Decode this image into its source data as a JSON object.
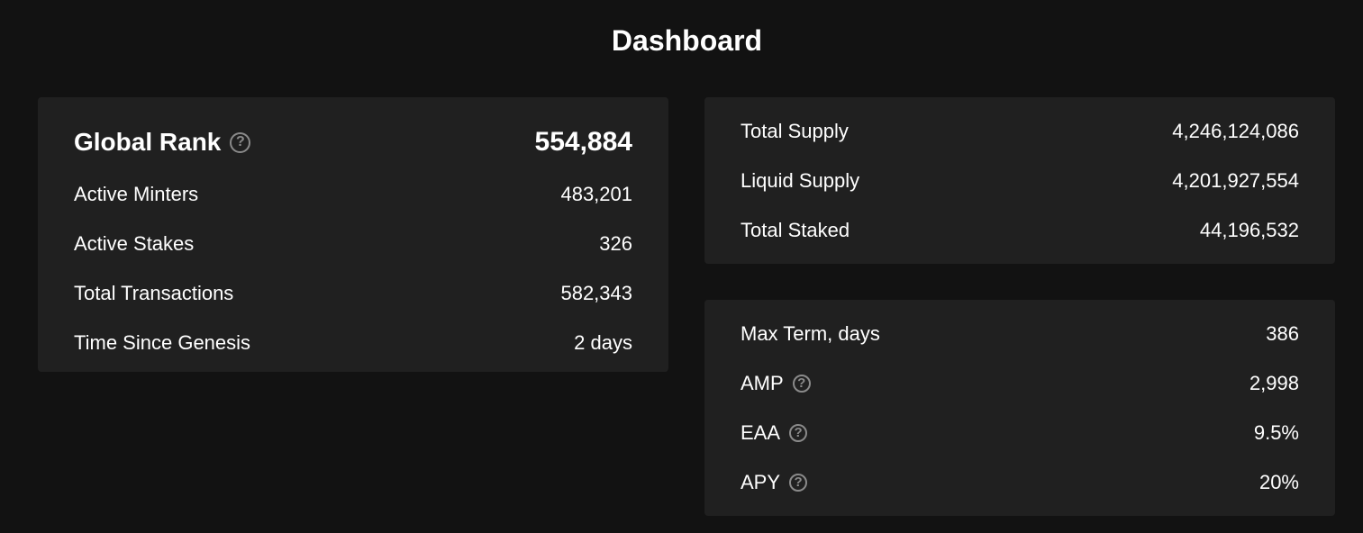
{
  "page": {
    "title": "Dashboard"
  },
  "stats": {
    "global_rank": {
      "label": "Global Rank",
      "value": "554,884"
    },
    "rows": [
      {
        "label": "Active Minters",
        "value": "483,201"
      },
      {
        "label": "Active Stakes",
        "value": "326"
      },
      {
        "label": "Total Transactions",
        "value": "582,343"
      },
      {
        "label": "Time Since Genesis",
        "value": "2 days"
      }
    ]
  },
  "supply": {
    "rows": [
      {
        "label": "Total Supply",
        "value": "4,246,124,086"
      },
      {
        "label": "Liquid Supply",
        "value": "4,201,927,554"
      },
      {
        "label": "Total Staked",
        "value": "44,196,532"
      }
    ]
  },
  "terms": {
    "rows": [
      {
        "label": "Max Term, days",
        "value": "386"
      },
      {
        "label": "AMP",
        "value": "2,998",
        "icon": "help-circle-icon"
      },
      {
        "label": "EAA",
        "value": "9.5%",
        "icon": "help-circle-icon"
      },
      {
        "label": "APY",
        "value": "20%",
        "icon": "help-circle-icon"
      }
    ]
  },
  "icons": {
    "help_glyph": "?"
  },
  "colors": {
    "background": "#121212",
    "card": "#202020",
    "text": "#ffffff",
    "icon": "#8a8a8a"
  }
}
